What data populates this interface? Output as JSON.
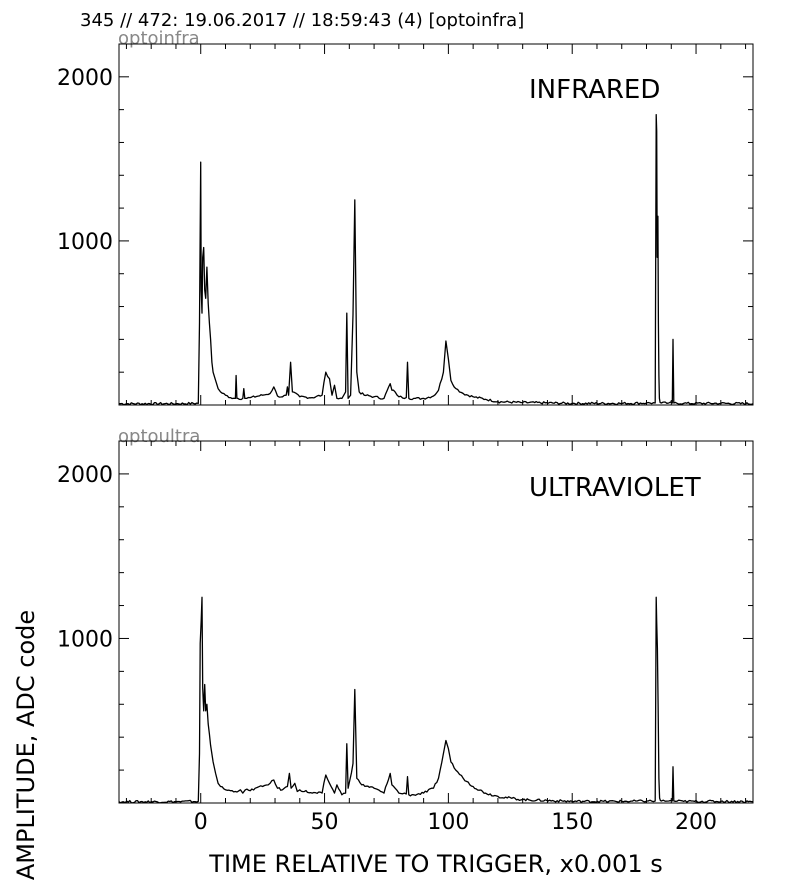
{
  "header": "345 // 472:   19.06.2017 // 18:59:43 (4)  [optoinfra]",
  "ylabel": "AMPLITUDE,  ADC code",
  "xlabel": "TIME RELATIVE TO TRIGGER,   x0.001 s",
  "chart_data": [
    {
      "type": "line",
      "channel": "optoinfra",
      "title": "INFRARED",
      "xlim": [
        -33,
        223
      ],
      "ylim": [
        0,
        2200
      ],
      "xticks": [
        0,
        50,
        100,
        150,
        200
      ],
      "yticks": [
        1000,
        2000
      ],
      "grid": false,
      "color": "#000000",
      "baseline": 10,
      "x": [
        -33,
        -10,
        -1,
        -0.5,
        0,
        0.2,
        0.5,
        0.8,
        1.2,
        1.6,
        2.0,
        2.5,
        3.0,
        3.5,
        4.0,
        4.5,
        5,
        6,
        7,
        8,
        10,
        12,
        14,
        14.3,
        14.6,
        15,
        17,
        17.4,
        17.8,
        20,
        25,
        28,
        29.5,
        31,
        33,
        34.5,
        35,
        35.5,
        36.3,
        37,
        40,
        45,
        49,
        50.5,
        52,
        53,
        54,
        55,
        57,
        58.5,
        59,
        59.5,
        60.5,
        61.5,
        62.2,
        63,
        64,
        66,
        70,
        74,
        76.5,
        77.2,
        78.5,
        80,
        83,
        83.5,
        84,
        86,
        90,
        94,
        96,
        98,
        99,
        100,
        101,
        103,
        106,
        110,
        115,
        120,
        130,
        150,
        170,
        180,
        183.5,
        183.9,
        184.1,
        184.3,
        184.6,
        184.8,
        185.0,
        185.2,
        185.5,
        186,
        189,
        190.4,
        190.7,
        191,
        195,
        210,
        223
      ],
      "y": [
        8,
        8,
        10,
        500,
        1480,
        700,
        560,
        900,
        960,
        700,
        650,
        840,
        620,
        500,
        400,
        260,
        200,
        150,
        100,
        80,
        60,
        45,
        40,
        180,
        40,
        40,
        40,
        100,
        40,
        45,
        60,
        70,
        110,
        55,
        50,
        60,
        110,
        60,
        260,
        80,
        50,
        45,
        60,
        200,
        160,
        60,
        120,
        40,
        40,
        80,
        560,
        40,
        60,
        550,
        1250,
        200,
        80,
        60,
        50,
        40,
        130,
        90,
        80,
        50,
        45,
        260,
        40,
        40,
        40,
        55,
        90,
        200,
        390,
        280,
        150,
        100,
        70,
        50,
        35,
        20,
        15,
        10,
        10,
        12,
        12,
        1770,
        1670,
        900,
        1150,
        500,
        180,
        40,
        15,
        12,
        12,
        12,
        400,
        12,
        10,
        10,
        8
      ]
    },
    {
      "type": "line",
      "channel": "optoultra",
      "title": "ULTRAVIOLET",
      "xlim": [
        -33,
        223
      ],
      "ylim": [
        0,
        2200
      ],
      "xticks": [
        0,
        50,
        100,
        150,
        200
      ],
      "yticks": [
        1000,
        2000
      ],
      "grid": false,
      "color": "#000000",
      "baseline": 10,
      "x": [
        -33,
        -10,
        -1,
        -0.5,
        -0.2,
        0.2,
        0.5,
        0.8,
        1.2,
        1.6,
        2.0,
        2.5,
        3.0,
        3.5,
        4.0,
        5,
        6,
        7,
        8,
        10,
        12,
        14,
        16,
        17,
        18,
        20,
        22,
        25,
        28,
        29.5,
        31,
        33,
        35,
        35.8,
        36.5,
        38,
        39,
        40,
        45,
        49,
        50.5,
        52,
        54,
        55,
        57,
        58.5,
        59,
        59.5,
        61.5,
        62.2,
        63,
        65,
        70,
        74,
        76.5,
        77.2,
        78.5,
        80,
        83,
        83.5,
        84,
        86,
        90,
        94,
        96,
        98,
        99,
        100,
        101,
        103,
        106,
        110,
        115,
        120,
        130,
        150,
        170,
        180,
        183.5,
        183.9,
        184.1,
        184.4,
        184.7,
        185.0,
        185.3,
        185.6,
        186,
        189,
        190.4,
        190.7,
        191,
        195,
        210,
        223
      ],
      "y": [
        8,
        8,
        10,
        300,
        970,
        1110,
        1250,
        700,
        560,
        720,
        560,
        600,
        480,
        420,
        350,
        250,
        180,
        120,
        100,
        80,
        75,
        70,
        80,
        60,
        80,
        75,
        90,
        100,
        120,
        140,
        90,
        80,
        100,
        180,
        90,
        120,
        70,
        80,
        60,
        60,
        170,
        120,
        60,
        110,
        50,
        60,
        360,
        90,
        240,
        690,
        150,
        110,
        90,
        60,
        180,
        110,
        90,
        60,
        55,
        160,
        50,
        50,
        60,
        90,
        150,
        300,
        380,
        330,
        250,
        200,
        150,
        100,
        60,
        40,
        20,
        10,
        10,
        12,
        12,
        1250,
        1100,
        940,
        600,
        150,
        30,
        15,
        12,
        12,
        12,
        220,
        12,
        10,
        10,
        8
      ]
    }
  ]
}
